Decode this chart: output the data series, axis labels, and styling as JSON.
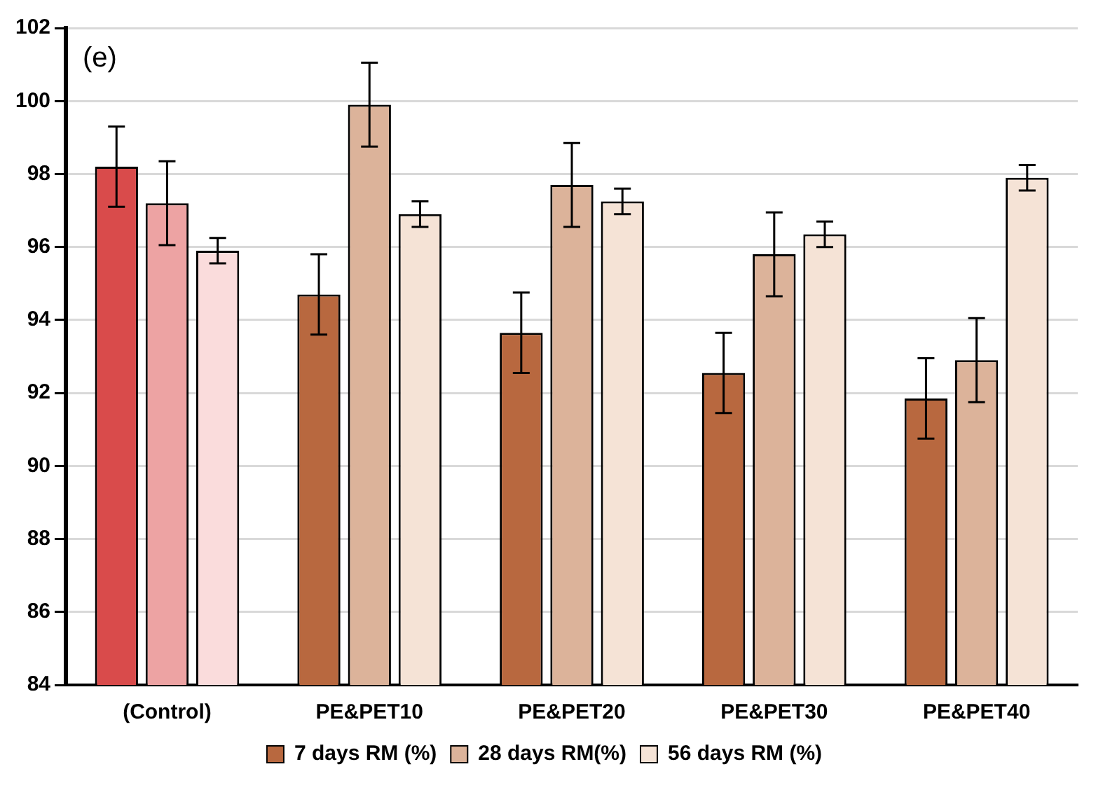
{
  "chart_data": {
    "type": "bar",
    "categories": [
      "(Control)",
      "PE&PET10",
      "PE&PET20",
      "PE&PET30",
      "PE&PET40"
    ],
    "series": [
      {
        "name": "7 days RM (%)",
        "color": "#b8683f",
        "colors": [
          "#d94b4b",
          "#b8683f",
          "#b8683f",
          "#b8683f",
          "#b8683f"
        ],
        "values": [
          98.2,
          94.7,
          93.65,
          92.55,
          91.85
        ],
        "errors": [
          1.1,
          1.1,
          1.1,
          1.1,
          1.1
        ]
      },
      {
        "name": "28 days RM(%)",
        "color": "#dcb39a",
        "colors": [
          "#eda3a3",
          "#dcb39a",
          "#dcb39a",
          "#dcb39a",
          "#dcb39a"
        ],
        "values": [
          97.2,
          99.9,
          97.7,
          95.8,
          92.9
        ],
        "errors": [
          1.15,
          1.15,
          1.15,
          1.15,
          1.15
        ]
      },
      {
        "name": "56 days RM (%)",
        "color": "#f5e3d6",
        "colors": [
          "#fadcdc",
          "#f5e3d6",
          "#f5e3d6",
          "#f5e3d6",
          "#f5e3d6"
        ],
        "values": [
          95.9,
          96.9,
          97.25,
          96.35,
          97.9
        ],
        "errors": [
          0.35,
          0.35,
          0.35,
          0.35,
          0.35
        ]
      }
    ],
    "ylim": [
      84,
      102
    ],
    "yticks": [
      84,
      86,
      88,
      90,
      92,
      94,
      96,
      98,
      100,
      102
    ],
    "grid": "y",
    "legend": "bottom",
    "annotations": [
      "(e)"
    ]
  }
}
